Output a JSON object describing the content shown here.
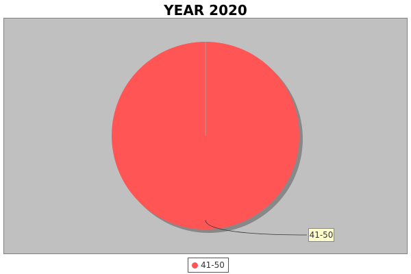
{
  "colors": {
    "plot_background": "#c0c0c0",
    "slice": "#ff5555",
    "label_box": "#ffffcc"
  },
  "chart_data": {
    "type": "pie",
    "title": "YEAR 2020",
    "categories": [
      "41-50"
    ],
    "values": [
      100
    ],
    "slice_labels": [
      "41-50"
    ],
    "legend": {
      "placement": "bottom-center",
      "entries": [
        "41-50"
      ]
    }
  }
}
